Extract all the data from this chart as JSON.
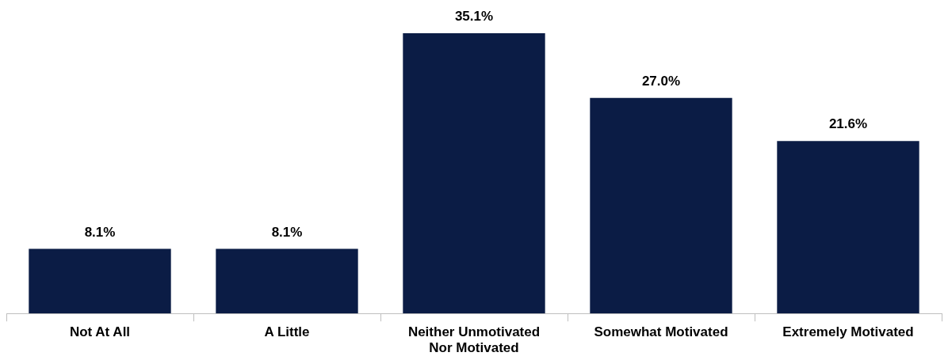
{
  "chart_data": {
    "type": "bar",
    "categories": [
      "Not At All",
      "A Little",
      "Neither Unmotivated Nor Motivated",
      "Somewhat Motivated",
      "Extremely Motivated"
    ],
    "values": [
      8.1,
      8.1,
      35.1,
      27.0,
      21.6
    ],
    "value_labels": [
      "8.1%",
      "8.1%",
      "35.1%",
      "27.0%",
      "21.6%"
    ],
    "color": "#0b1c45",
    "grid": false,
    "legend": false
  }
}
